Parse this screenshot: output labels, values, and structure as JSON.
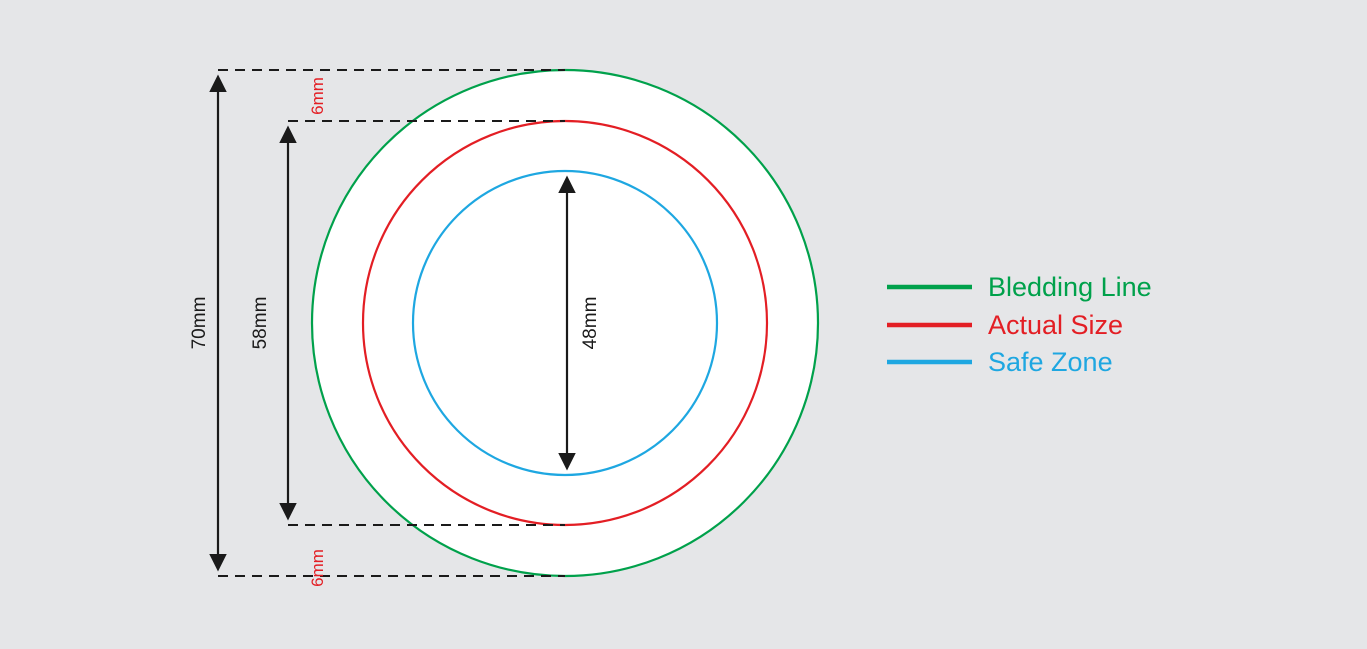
{
  "colors": {
    "background": "#e5e6e8",
    "bleed": "#00a14b",
    "actual": "#e31e24",
    "safe": "#1ea7e1",
    "dimension": "#1a1a1a"
  },
  "dimensions": {
    "outer_label": "70mm",
    "middle_label": "58mm",
    "inner_label": "48mm",
    "top_gap_label": "6mm",
    "bottom_gap_label": "6mm"
  },
  "legend": {
    "items": [
      {
        "label": "Bledding Line",
        "color": "#00a14b"
      },
      {
        "label": "Actual Size",
        "color": "#e31e24"
      },
      {
        "label": "Safe Zone",
        "color": "#1ea7e1"
      }
    ]
  }
}
